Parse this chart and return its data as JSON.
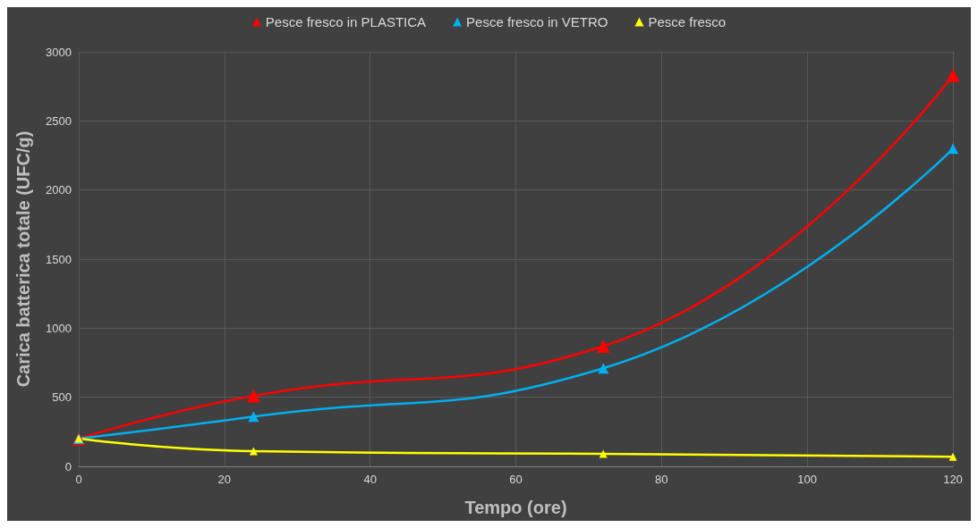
{
  "chart_data": {
    "type": "line",
    "xlabel": "Tempo (ore)",
    "ylabel": "Carica batterica totale (UFC/g)",
    "x": [
      0,
      24,
      72,
      120
    ],
    "series": [
      {
        "name": "Pesce fresco in PLASTICA",
        "color": "#ff0000",
        "values": [
          200,
          510,
          870,
          2830
        ]
      },
      {
        "name": "Pesce fresco in VETRO",
        "color": "#00b0f0",
        "values": [
          200,
          360,
          710,
          2300
        ]
      },
      {
        "name": "Pesce fresco",
        "color": "#ffff00",
        "values": [
          200,
          110,
          90,
          70
        ]
      }
    ],
    "xlim": [
      0,
      120
    ],
    "xticks": [
      0,
      20,
      40,
      60,
      80,
      100,
      120
    ],
    "ylim": [
      0,
      3000
    ],
    "yticks": [
      0,
      500,
      1000,
      1500,
      2000,
      2500,
      3000
    ],
    "grid": true,
    "legend": "top",
    "marker": "triangle",
    "line_style": "solid"
  }
}
